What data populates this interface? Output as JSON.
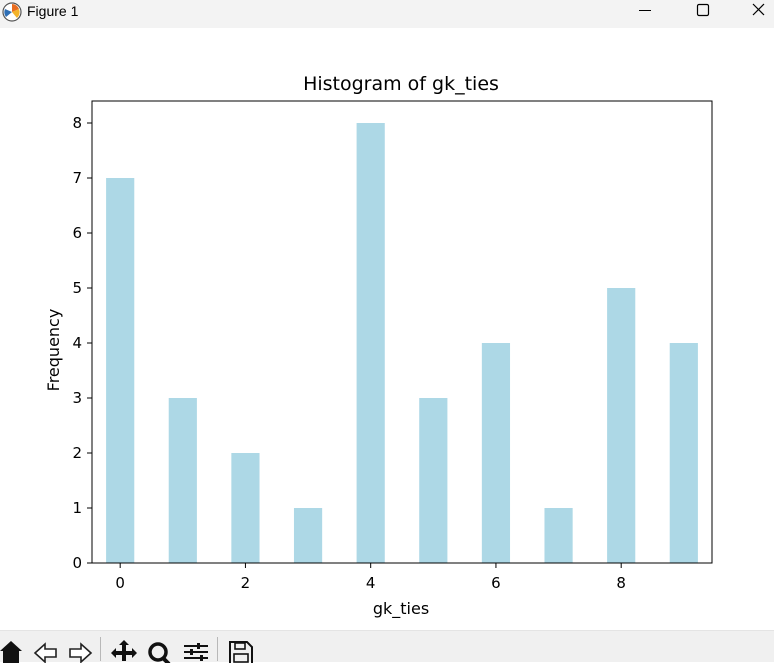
{
  "window": {
    "title": "Figure 1",
    "icons": {
      "app": "matplotlib-figure-icon",
      "minimize": "minimize-icon",
      "maximize": "maximize-icon",
      "close": "close-icon"
    }
  },
  "toolbar": {
    "buttons": [
      {
        "name": "home",
        "icon": "home-icon"
      },
      {
        "name": "back",
        "icon": "back-arrow-icon"
      },
      {
        "name": "forward",
        "icon": "forward-arrow-icon"
      },
      {
        "name": "pan",
        "icon": "move-icon"
      },
      {
        "name": "zoom",
        "icon": "zoom-icon"
      },
      {
        "name": "configure-subplots",
        "icon": "sliders-icon"
      },
      {
        "name": "save",
        "icon": "save-icon"
      }
    ]
  },
  "chart_data": {
    "type": "bar",
    "title": "Histogram of gk_ties",
    "xlabel": "gk_ties",
    "ylabel": "Frequency",
    "x": [
      0,
      1,
      2,
      3,
      4,
      5,
      6,
      7,
      8,
      9
    ],
    "values": [
      7,
      3,
      2,
      1,
      8,
      3,
      4,
      1,
      5,
      4
    ],
    "xlim": [
      -0.45,
      9.45
    ],
    "ylim": [
      0,
      8.4
    ],
    "xticks": [
      "0",
      "2",
      "4",
      "6",
      "8"
    ],
    "xtick_values": [
      0,
      2,
      4,
      6,
      8
    ],
    "yticks": [
      "0",
      "1",
      "2",
      "3",
      "4",
      "5",
      "6",
      "7",
      "8"
    ],
    "ytick_values": [
      0,
      1,
      2,
      3,
      4,
      5,
      6,
      7,
      8
    ],
    "bar_color": "#add8e6",
    "grid": false,
    "legend": "none"
  }
}
